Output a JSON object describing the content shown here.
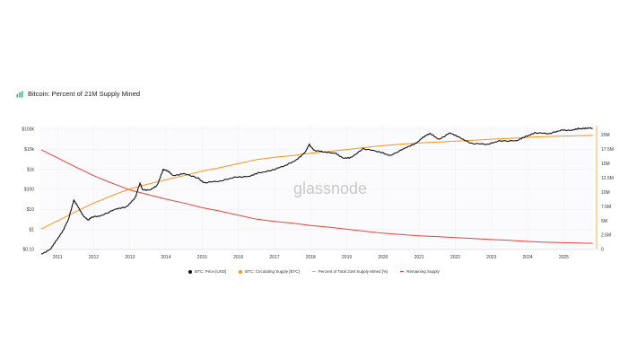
{
  "page": {
    "title": "Bitcoin: Percent of 21M Supply Mined",
    "icon": "chart-icon",
    "watermark": "glassnode"
  },
  "colors": {
    "price": "#111111",
    "supply": "#f7931a",
    "remaining": "#e8413a",
    "percent": "#bbbbbb",
    "grid": "#eeeeee",
    "axis_right": "#f7931a"
  },
  "legend": [
    {
      "label": "BTC: Price [USD]",
      "color": "#111111",
      "kind": "dot"
    },
    {
      "label": "BTC: Circulating Supply [BTC]",
      "color": "#f7931a",
      "kind": "dot"
    },
    {
      "label": "Percent of Total 21M Supply Mined [%]",
      "color": "#bbbbbb",
      "kind": "line"
    },
    {
      "label": "Remaining Supply",
      "color": "#e8413a",
      "kind": "line"
    }
  ],
  "chart_data": {
    "type": "line",
    "x_ticks": [
      "2011",
      "2012",
      "2013",
      "2014",
      "2015",
      "2016",
      "2017",
      "2018",
      "2019",
      "2020",
      "2021",
      "2022",
      "2023",
      "2024",
      "2025"
    ],
    "xlim": [
      "2010-07",
      "2025-11"
    ],
    "left_axis": {
      "scale": "log",
      "ticks": [
        "$0.10",
        "$1",
        "$10",
        "$100",
        "$1k",
        "$10k",
        "$100k"
      ],
      "tick_values": [
        0.1,
        1,
        10,
        100,
        1000,
        10000,
        100000
      ],
      "ylim": [
        0.1,
        100000
      ]
    },
    "right_axis": {
      "scale": "linear",
      "ticks": [
        "0",
        "2.5M",
        "5M",
        "7.5M",
        "10M",
        "12.5M",
        "15M",
        "17.5M",
        "20M"
      ],
      "tick_values": [
        0,
        2500000,
        5000000,
        7500000,
        10000000,
        12500000,
        15000000,
        17500000,
        20000000
      ],
      "ylim": [
        0,
        21000000
      ]
    },
    "series": [
      {
        "name": "BTC: Price [USD]",
        "axis": "left",
        "points": [
          [
            2010.55,
            0.06
          ],
          [
            2010.8,
            0.1
          ],
          [
            2010.95,
            0.25
          ],
          [
            2011.15,
            0.9
          ],
          [
            2011.3,
            3
          ],
          [
            2011.45,
            30
          ],
          [
            2011.55,
            15
          ],
          [
            2011.7,
            5
          ],
          [
            2011.85,
            3
          ],
          [
            2011.95,
            4
          ],
          [
            2012.2,
            5
          ],
          [
            2012.6,
            10
          ],
          [
            2012.9,
            13
          ],
          [
            2013.15,
            40
          ],
          [
            2013.28,
            200
          ],
          [
            2013.35,
            100
          ],
          [
            2013.55,
            90
          ],
          [
            2013.75,
            150
          ],
          [
            2013.92,
            1000
          ],
          [
            2014.05,
            800
          ],
          [
            2014.2,
            500
          ],
          [
            2014.5,
            600
          ],
          [
            2014.9,
            350
          ],
          [
            2015.05,
            220
          ],
          [
            2015.5,
            250
          ],
          [
            2015.9,
            420
          ],
          [
            2016.3,
            430
          ],
          [
            2016.55,
            650
          ],
          [
            2016.95,
            950
          ],
          [
            2017.3,
            1500
          ],
          [
            2017.6,
            3000
          ],
          [
            2017.85,
            7000
          ],
          [
            2017.96,
            17000
          ],
          [
            2018.1,
            9000
          ],
          [
            2018.4,
            7000
          ],
          [
            2018.7,
            6500
          ],
          [
            2018.9,
            3500
          ],
          [
            2019.1,
            3700
          ],
          [
            2019.45,
            11000
          ],
          [
            2019.9,
            7200
          ],
          [
            2020.2,
            5000
          ],
          [
            2020.6,
            11000
          ],
          [
            2020.9,
            19000
          ],
          [
            2021.1,
            40000
          ],
          [
            2021.3,
            60000
          ],
          [
            2021.55,
            32000
          ],
          [
            2021.85,
            64000
          ],
          [
            2022.1,
            40000
          ],
          [
            2022.45,
            20000
          ],
          [
            2022.9,
            17000
          ],
          [
            2023.2,
            27000
          ],
          [
            2023.7,
            26000
          ],
          [
            2023.95,
            43000
          ],
          [
            2024.2,
            68000
          ],
          [
            2024.6,
            58000
          ],
          [
            2024.95,
            95000
          ],
          [
            2025.2,
            85000
          ],
          [
            2025.4,
            105000
          ],
          [
            2025.6,
            115000
          ],
          [
            2025.8,
            110000
          ]
        ]
      },
      {
        "name": "BTC: Circulating Supply [BTC]",
        "axis": "right",
        "points": [
          [
            2010.55,
            3600000
          ],
          [
            2011.0,
            5000000
          ],
          [
            2011.5,
            6600000
          ],
          [
            2012.0,
            8100000
          ],
          [
            2012.5,
            9400000
          ],
          [
            2013.0,
            10600000
          ],
          [
            2013.5,
            11400000
          ],
          [
            2014.0,
            12200000
          ],
          [
            2014.5,
            12900000
          ],
          [
            2015.0,
            13700000
          ],
          [
            2015.5,
            14300000
          ],
          [
            2016.0,
            15000000
          ],
          [
            2016.5,
            15700000
          ],
          [
            2017.0,
            16100000
          ],
          [
            2017.5,
            16400000
          ],
          [
            2018.0,
            16800000
          ],
          [
            2018.5,
            17100000
          ],
          [
            2019.0,
            17450000
          ],
          [
            2019.5,
            17800000
          ],
          [
            2020.0,
            18150000
          ],
          [
            2020.5,
            18400000
          ],
          [
            2021.0,
            18600000
          ],
          [
            2021.5,
            18750000
          ],
          [
            2022.0,
            18920000
          ],
          [
            2022.5,
            19080000
          ],
          [
            2023.0,
            19250000
          ],
          [
            2023.5,
            19400000
          ],
          [
            2024.0,
            19580000
          ],
          [
            2024.5,
            19720000
          ],
          [
            2025.0,
            19800000
          ],
          [
            2025.5,
            19880000
          ],
          [
            2025.8,
            19930000
          ]
        ]
      },
      {
        "name": "Remaining Supply",
        "axis": "right",
        "points": [
          [
            2010.55,
            17400000
          ],
          [
            2011.0,
            16000000
          ],
          [
            2011.5,
            14400000
          ],
          [
            2012.0,
            12900000
          ],
          [
            2012.5,
            11600000
          ],
          [
            2013.0,
            10400000
          ],
          [
            2013.5,
            9600000
          ],
          [
            2014.0,
            8800000
          ],
          [
            2014.5,
            8100000
          ],
          [
            2015.0,
            7300000
          ],
          [
            2015.5,
            6700000
          ],
          [
            2016.0,
            6000000
          ],
          [
            2016.5,
            5300000
          ],
          [
            2017.0,
            4900000
          ],
          [
            2017.5,
            4600000
          ],
          [
            2018.0,
            4200000
          ],
          [
            2018.5,
            3900000
          ],
          [
            2019.0,
            3550000
          ],
          [
            2019.5,
            3200000
          ],
          [
            2020.0,
            2850000
          ],
          [
            2020.5,
            2600000
          ],
          [
            2021.0,
            2400000
          ],
          [
            2021.5,
            2250000
          ],
          [
            2022.0,
            2080000
          ],
          [
            2022.5,
            1920000
          ],
          [
            2023.0,
            1750000
          ],
          [
            2023.5,
            1600000
          ],
          [
            2024.0,
            1420000
          ],
          [
            2024.5,
            1280000
          ],
          [
            2025.0,
            1200000
          ],
          [
            2025.5,
            1120000
          ],
          [
            2025.8,
            1070000
          ]
        ]
      }
    ],
    "grid": true,
    "legend_position": "bottom"
  }
}
